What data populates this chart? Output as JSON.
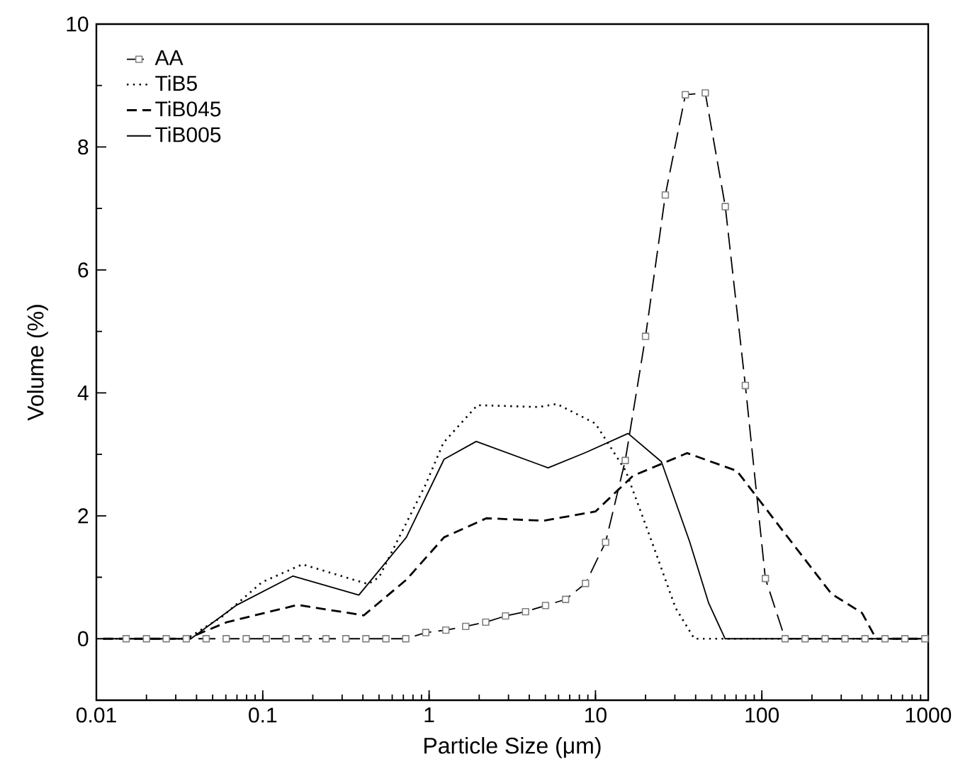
{
  "chart_data": {
    "type": "line",
    "xlabel": "Particle Size (μm)",
    "ylabel": "Volume (%)",
    "log": "x",
    "xlim": [
      0.01,
      1000
    ],
    "xticks": [
      0.01,
      0.1,
      1,
      10,
      100,
      1000
    ],
    "ylim": [
      -1,
      10
    ],
    "yticks": [
      0,
      2,
      4,
      6,
      8,
      10
    ],
    "grid": false,
    "legend": "top left",
    "series": [
      {
        "name": "AA",
        "color": "#000000",
        "line_style": "dashed",
        "marker": "square",
        "x": [
          0.0151,
          0.02,
          0.0263,
          0.0347,
          0.0457,
          0.0603,
          0.0796,
          0.105,
          0.138,
          0.182,
          0.24,
          0.316,
          0.417,
          0.55,
          0.724,
          0.955,
          1.26,
          1.66,
          2.19,
          2.88,
          3.8,
          5.01,
          6.61,
          8.71,
          11.5,
          15.1,
          20.0,
          26.3,
          34.7,
          45.7,
          60.3,
          79.6,
          105,
          138,
          182,
          240,
          316,
          417,
          550,
          724,
          955
        ],
        "values": [
          0,
          0,
          0,
          0,
          0,
          0,
          0,
          0,
          0,
          0,
          0,
          0,
          0,
          0,
          0,
          0.1,
          0.14,
          0.2,
          0.27,
          0.37,
          0.44,
          0.54,
          0.64,
          0.9,
          1.57,
          2.9,
          4.92,
          7.22,
          8.85,
          8.88,
          7.03,
          4.12,
          0.98,
          0,
          0,
          0,
          0,
          0,
          0,
          0,
          0
        ]
      },
      {
        "name": "TiB5",
        "color": "#000000",
        "line_style": "dotted",
        "marker": "none",
        "x": [
          0.011,
          0.035,
          0.057,
          0.099,
          0.173,
          0.43,
          0.5,
          0.95,
          1.22,
          1.95,
          4.55,
          5.86,
          10,
          15.2,
          21.8,
          30.3,
          39.3,
          1000
        ],
        "values": [
          0,
          0,
          0.36,
          0.92,
          1.21,
          0.89,
          1.0,
          2.5,
          3.19,
          3.8,
          3.77,
          3.82,
          3.5,
          2.73,
          1.58,
          0.5,
          0,
          0
        ]
      },
      {
        "name": "TiB045",
        "color": "#000000",
        "line_style": "dashed",
        "marker": "none",
        "x": [
          0.011,
          0.035,
          0.061,
          0.162,
          0.405,
          0.73,
          1.23,
          2.21,
          4.86,
          10,
          16.8,
          35.6,
          70.8,
          136,
          262,
          400,
          486,
          1000
        ],
        "values": [
          0,
          0,
          0.27,
          0.55,
          0.38,
          0.96,
          1.65,
          1.96,
          1.92,
          2.07,
          2.65,
          3.02,
          2.73,
          1.73,
          0.73,
          0.42,
          0,
          0
        ]
      },
      {
        "name": "TiB005",
        "color": "#000000",
        "line_style": "solid",
        "marker": "none",
        "x": [
          0.011,
          0.037,
          0.069,
          0.152,
          0.378,
          0.73,
          1.23,
          1.92,
          5.19,
          8.73,
          15.7,
          24.9,
          36.8,
          47.9,
          60.1,
          1000
        ],
        "values": [
          0,
          0,
          0.54,
          1.02,
          0.71,
          1.65,
          2.92,
          3.21,
          2.78,
          3.03,
          3.34,
          2.88,
          1.58,
          0.58,
          0,
          0
        ]
      }
    ]
  }
}
